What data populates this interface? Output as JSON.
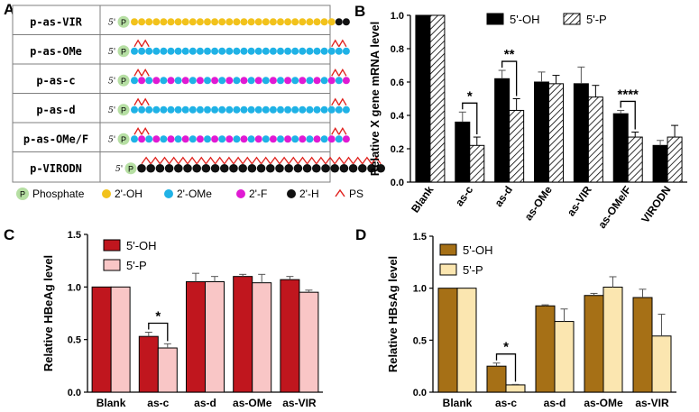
{
  "panels": {
    "a": "A",
    "b": "B",
    "c": "C",
    "d": "D"
  },
  "panel_a": {
    "rows": [
      {
        "name": "p-as-VIR",
        "code": "ooooooooooooooooooooooooooooHH",
        "ps_start": [],
        "ps_end": []
      },
      {
        "name": "p-as-OMe",
        "code": "meeeeeeeeeeeeeeeeeeeeeeeeeeeee",
        "ps_start": [
          0,
          1
        ],
        "ps_end": [
          27,
          28
        ]
      },
      {
        "name": "p-as-c",
        "code": "mfmfmfmfmfmfmfmfmfmfmfmfmfmfmf",
        "ps_start": [
          0,
          1
        ],
        "ps_end": [
          27,
          28
        ]
      },
      {
        "name": "p-as-d",
        "code": "ememememememememememememememem",
        "ps_start": [
          0,
          1
        ],
        "ps_end": [
          27,
          28
        ]
      },
      {
        "name": "p-as-OMe/F",
        "code": "mfmfmfmfmfmfmfmfmfmfmfmfmfmfmf",
        "ps_start": [
          0,
          1
        ],
        "ps_end": [
          27,
          28
        ]
      },
      {
        "name": "p-VIRODN",
        "code": "HHHHHHHHHHHHHHHHHHHHHHHHHHH",
        "ps_start": "all",
        "ps_end": []
      }
    ],
    "five_prime": "5'",
    "p_symbol": "P",
    "legend": [
      "Phosphate",
      "2'-OH",
      "2'-OMe",
      "2'-F",
      "2'-H",
      "PS"
    ],
    "colors": {
      "phosphate": "#b6dfa3",
      "oh": "#f2c21b",
      "ome": "#1fb2e6",
      "f": "#e01ad3",
      "h": "#111111",
      "ps": "#e0201c"
    }
  },
  "chart_data": [
    {
      "panel": "B",
      "type": "bar",
      "ylabel": "Relative X gene mRNA level",
      "ylim": [
        0,
        1.0
      ],
      "yticks": [
        "0.0",
        "0.2",
        "0.4",
        "0.6",
        "0.8",
        "1.0"
      ],
      "categories": [
        "Blank",
        "as-c",
        "as-d",
        "as-OMe",
        "as-VIR",
        "as-OMe/F",
        "VIRODN"
      ],
      "series": [
        {
          "name": "5'-OH",
          "values": [
            1.0,
            0.36,
            0.62,
            0.6,
            0.59,
            0.41,
            0.22
          ],
          "errors": [
            0,
            0.06,
            0.05,
            0.06,
            0.1,
            0.02,
            0.03
          ],
          "fill": "#000000",
          "hatch": false
        },
        {
          "name": "5'-P",
          "values": [
            1.0,
            0.22,
            0.43,
            0.59,
            0.51,
            0.27,
            0.27
          ],
          "errors": [
            0,
            0.05,
            0.07,
            0.05,
            0.07,
            0.03,
            0.07
          ],
          "fill": "#ffffff",
          "hatch": true
        }
      ],
      "significance": [
        {
          "cat": "as-c",
          "label": "*"
        },
        {
          "cat": "as-d",
          "label": "**"
        },
        {
          "cat": "as-OMe/F",
          "label": "****"
        }
      ],
      "legend_layout": "horizontal"
    },
    {
      "panel": "C",
      "type": "bar",
      "ylabel": "Relative HBeAg level",
      "ylim": [
        0,
        1.5
      ],
      "yticks": [
        "0.0",
        "0.5",
        "1.0",
        "1.5"
      ],
      "categories": [
        "Blank",
        "as-c",
        "as-d",
        "as-OMe",
        "as-VIR"
      ],
      "series": [
        {
          "name": "5'-OH",
          "values": [
            1.0,
            0.53,
            1.05,
            1.1,
            1.07
          ],
          "errors": [
            0,
            0.04,
            0.08,
            0.02,
            0.03
          ],
          "fill": "#c0161e",
          "hatch": false
        },
        {
          "name": "5'-P",
          "values": [
            1.0,
            0.42,
            1.05,
            1.04,
            0.95
          ],
          "errors": [
            0,
            0.04,
            0.05,
            0.08,
            0.02
          ],
          "fill": "#f9c6c6",
          "hatch": false
        }
      ],
      "significance": [
        {
          "cat": "as-c",
          "label": "*"
        }
      ],
      "legend_layout": "vertical"
    },
    {
      "panel": "D",
      "type": "bar",
      "ylabel": "Relative HBsAg level",
      "ylim": [
        0,
        1.5
      ],
      "yticks": [
        "0.0",
        "0.5",
        "1.0",
        "1.5"
      ],
      "categories": [
        "Blank",
        "as-c",
        "as-d",
        "as-OMe",
        "as-VIR"
      ],
      "series": [
        {
          "name": "5'-OH",
          "values": [
            1.0,
            0.25,
            0.83,
            0.93,
            0.91
          ],
          "errors": [
            0,
            0.03,
            0.01,
            0.02,
            0.08
          ],
          "fill": "#a67016",
          "hatch": false
        },
        {
          "name": "5'-P",
          "values": [
            1.0,
            0.07,
            0.68,
            1.01,
            0.54
          ],
          "errors": [
            0,
            0.005,
            0.12,
            0.1,
            0.21
          ],
          "fill": "#fbe6b0",
          "hatch": false
        }
      ],
      "significance": [
        {
          "cat": "as-c",
          "label": "*"
        }
      ],
      "legend_layout": "vertical"
    }
  ]
}
